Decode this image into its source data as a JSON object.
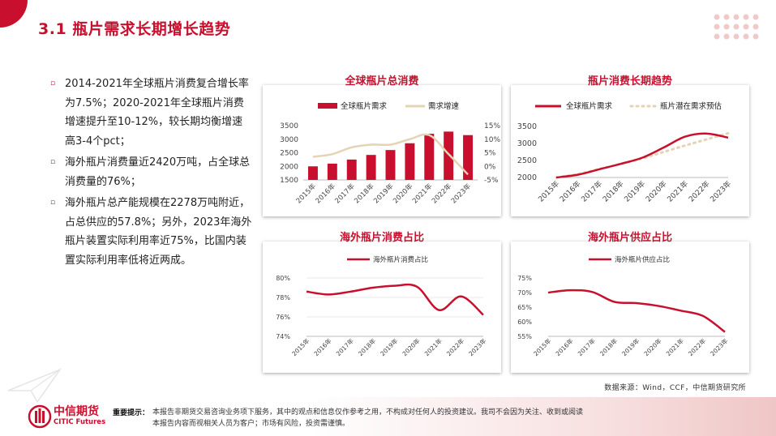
{
  "page": {
    "title": "3.1  瓶片需求长期增长趋势",
    "source": "数据来源：Wind，CCF，中信期货研究所",
    "logo_cn": "中信期货",
    "logo_en": "CITIC Futures",
    "disclaimer_label": "重要提示：",
    "disclaimer_line1": "本报告非期货交易咨询业务项下服务，其中的观点和信息仅作参考之用，不构成对任何人的投资建议。我司不会因为关注、收到或阅读",
    "disclaimer_line2": "本报告内容而视相关人员为客户；市场有风险，投资需谨慎。"
  },
  "bullets": [
    "2014-2021年全球瓶片消费复合增长率为7.5%；2020-2021年全球瓶片消费增速提升至10-12%，较长期均衡增速高3-4个pct；",
    "海外瓶片消费量近2420万吨，占全球总消费量的76%；",
    "海外瓶片总产能规模在2278万吨附近，占总供应的57.8%；另外，2023年海外瓶片装置实际利用率近75%，比国内装置实际利用率低将近两成。"
  ],
  "colors": {
    "accent": "#c8102e",
    "tan": "#e6d3b3",
    "grid": "#e0e0e0"
  },
  "chart_data": [
    {
      "id": "total",
      "type": "bar",
      "title": "全球瓶片总消费",
      "categories": [
        "2015年",
        "2016年",
        "2017年",
        "2018年",
        "2019年",
        "2020年",
        "2021年",
        "2022年",
        "2023年"
      ],
      "series": [
        {
          "name": "全球瓶片需求",
          "type": "bar",
          "axis": "left",
          "values": [
            2000,
            2100,
            2250,
            2420,
            2600,
            2850,
            3200,
            3280,
            3150
          ]
        },
        {
          "name": "需求增速",
          "type": "line",
          "axis": "right",
          "values": [
            3.5,
            4.5,
            7,
            8,
            8,
            10,
            11.5,
            4.5,
            -3
          ]
        }
      ],
      "ylim": [
        1500,
        3500
      ],
      "yticks": [
        "1500",
        "2000",
        "2500",
        "3000",
        "3500"
      ],
      "y2lim": [
        -5,
        15
      ],
      "y2ticks": [
        "-5%",
        "0%",
        "5%",
        "10%",
        "15%"
      ]
    },
    {
      "id": "trend",
      "type": "line",
      "title": "瓶片消费长期趋势",
      "categories": [
        "2015年",
        "2016年",
        "2017年",
        "2018年",
        "2019年",
        "2020年",
        "2021年",
        "2022年",
        "2023年"
      ],
      "series": [
        {
          "name": "全球瓶片需求",
          "style": "solid",
          "values": [
            2000,
            2080,
            2240,
            2400,
            2580,
            2880,
            3200,
            3290,
            3170
          ]
        },
        {
          "name": "瓶片潜在需求预估",
          "style": "dotted",
          "values": [
            2000,
            2100,
            2250,
            2400,
            2560,
            2750,
            2940,
            3120,
            3300
          ]
        }
      ],
      "ylim": [
        2000,
        3500
      ],
      "yticks": [
        "2000",
        "2500",
        "3000",
        "3500"
      ]
    },
    {
      "id": "overseas-consumption",
      "type": "line",
      "title": "海外瓶片消费占比",
      "categories": [
        "2015年",
        "2016年",
        "2017年",
        "2018年",
        "2019年",
        "2020年",
        "2021年",
        "2022年",
        "2023年"
      ],
      "series": [
        {
          "name": "海外瓶片消费占比",
          "style": "solid",
          "values": [
            78.6,
            78.3,
            78.6,
            79.0,
            79.2,
            79.1,
            76.7,
            78.1,
            76.2
          ]
        }
      ],
      "ylim": [
        74,
        80
      ],
      "yticks": [
        "74%",
        "76%",
        "78%",
        "80%"
      ]
    },
    {
      "id": "overseas-supply",
      "type": "line",
      "title": "海外瓶片供应占比",
      "categories": [
        "2015年",
        "2016年",
        "2017年",
        "2018年",
        "2019年",
        "2020年",
        "2021年",
        "2022年",
        "2023年"
      ],
      "series": [
        {
          "name": "海外瓶片供应占比",
          "style": "solid",
          "values": [
            70.0,
            70.8,
            70.2,
            66.8,
            66.4,
            65.4,
            63.8,
            62.0,
            56.5
          ]
        }
      ],
      "ylim": [
        55,
        75
      ],
      "yticks": [
        "55%",
        "60%",
        "65%",
        "70%",
        "75%"
      ]
    }
  ]
}
